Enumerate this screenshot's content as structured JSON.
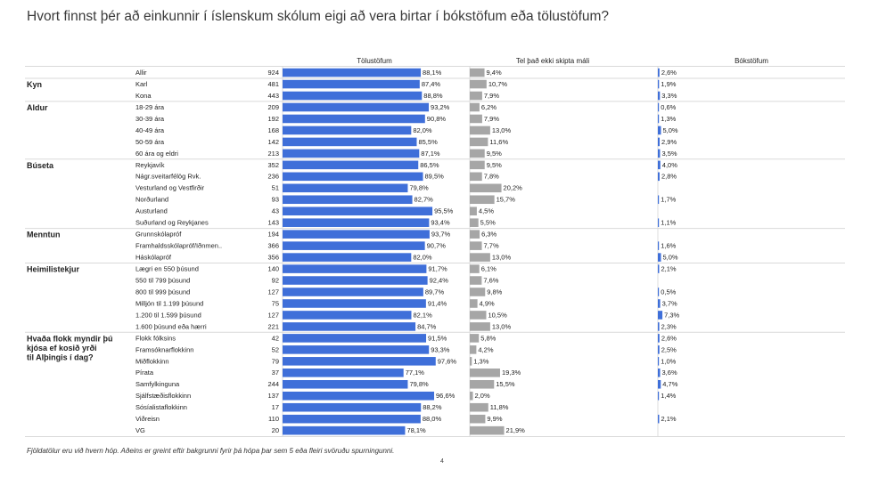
{
  "title": "Hvort finnst þér að einkunnir í íslenskum skólum eigi að vera birtar í bókstöfum eða tölustöfum?",
  "footnote": "Fjöldatölur eru við hvern hóp. Aðeins er greint eftir bakgrunni fyrir þá hópa þar sem 5 eða fleiri svöruðu spurningunni.",
  "page_number": "4",
  "colors": {
    "blue": "#3f6fd9",
    "gray": "#a6a6a6",
    "line": "#d9d9d9"
  },
  "chart_data": {
    "type": "bar",
    "columns": [
      "Tölustöfum",
      "Tel það ekki skipta máli",
      "Bókstöfum"
    ],
    "groups": [
      {
        "label": "",
        "rows": [
          {
            "label": "Allir",
            "n": "924",
            "values": [
              88.1,
              9.4,
              2.6
            ]
          }
        ]
      },
      {
        "label": "Kyn",
        "rows": [
          {
            "label": "Karl",
            "n": "481",
            "values": [
              87.4,
              10.7,
              1.9
            ]
          },
          {
            "label": "Kona",
            "n": "443",
            "values": [
              88.8,
              7.9,
              3.3
            ]
          }
        ]
      },
      {
        "label": "Aldur",
        "rows": [
          {
            "label": "18-29 ára",
            "n": "209",
            "values": [
              93.2,
              6.2,
              0.6
            ]
          },
          {
            "label": "30-39 ára",
            "n": "192",
            "values": [
              90.8,
              7.9,
              1.3
            ]
          },
          {
            "label": "40-49 ára",
            "n": "168",
            "values": [
              82.0,
              13.0,
              5.0
            ]
          },
          {
            "label": "50-59 ára",
            "n": "142",
            "values": [
              85.5,
              11.6,
              2.9
            ]
          },
          {
            "label": "60 ára og eldri",
            "n": "213",
            "values": [
              87.1,
              9.5,
              3.5
            ]
          }
        ]
      },
      {
        "label": "Búseta",
        "rows": [
          {
            "label": "Reykjavík",
            "n": "352",
            "values": [
              86.5,
              9.5,
              4.0
            ]
          },
          {
            "label": "Nágr.sveitarfélög Rvk.",
            "n": "236",
            "values": [
              89.5,
              7.8,
              2.8
            ]
          },
          {
            "label": "Vesturland og Vestfirðir",
            "n": "51",
            "values": [
              79.8,
              20.2,
              null
            ]
          },
          {
            "label": "Norðurland",
            "n": "93",
            "values": [
              82.7,
              15.7,
              1.7
            ]
          },
          {
            "label": "Austurland",
            "n": "43",
            "values": [
              95.5,
              4.5,
              null
            ]
          },
          {
            "label": "Suðurland og Reykjanes",
            "n": "143",
            "values": [
              93.4,
              5.5,
              1.1
            ]
          }
        ]
      },
      {
        "label": "Menntun",
        "rows": [
          {
            "label": "Grunnskólapróf",
            "n": "194",
            "values": [
              93.7,
              6.3,
              null
            ]
          },
          {
            "label": "Framhaldsskólapróf/Iðnmen..",
            "n": "366",
            "values": [
              90.7,
              7.7,
              1.6
            ]
          },
          {
            "label": "Háskólapróf",
            "n": "356",
            "values": [
              82.0,
              13.0,
              5.0
            ]
          }
        ]
      },
      {
        "label": "Heimilistekjur",
        "rows": [
          {
            "label": "Lægri en 550 þúsund",
            "n": "140",
            "values": [
              91.7,
              6.1,
              2.1
            ]
          },
          {
            "label": "550 til 799 þúsund",
            "n": "92",
            "values": [
              92.4,
              7.6,
              null
            ]
          },
          {
            "label": "800 til 999 þúsund",
            "n": "127",
            "values": [
              89.7,
              9.8,
              0.5
            ]
          },
          {
            "label": "Milljón til 1.199 þúsund",
            "n": "75",
            "values": [
              91.4,
              4.9,
              3.7
            ]
          },
          {
            "label": "1.200 til 1.599 þúsund",
            "n": "127",
            "values": [
              82.1,
              10.5,
              7.3
            ]
          },
          {
            "label": "1.600 þúsund eða hærri",
            "n": "221",
            "values": [
              84.7,
              13.0,
              2.3
            ]
          }
        ]
      },
      {
        "label": "Hvaða flokk myndir þú kjósa ef kosið yrði til Alþingis í dag?",
        "rows": [
          {
            "label": "Flokk fólksins",
            "n": "42",
            "values": [
              91.5,
              5.8,
              2.6
            ]
          },
          {
            "label": "Framsóknarflokkinn",
            "n": "52",
            "values": [
              93.3,
              4.2,
              2.5
            ]
          },
          {
            "label": "Miðflokkinn",
            "n": "79",
            "values": [
              97.6,
              1.3,
              1.0
            ]
          },
          {
            "label": "Pírata",
            "n": "37",
            "values": [
              77.1,
              19.3,
              3.6
            ]
          },
          {
            "label": "Samfylkinguna",
            "n": "244",
            "values": [
              79.8,
              15.5,
              4.7
            ]
          },
          {
            "label": "Sjálfstæðisflokkinn",
            "n": "137",
            "values": [
              96.6,
              2.0,
              1.4
            ]
          },
          {
            "label": "Sósíalistaflokkinn",
            "n": "17",
            "values": [
              88.2,
              11.8,
              null
            ]
          },
          {
            "label": "Viðreisn",
            "n": "110",
            "values": [
              88.0,
              9.9,
              2.1
            ]
          },
          {
            "label": "VG",
            "n": "20",
            "values": [
              78.1,
              21.9,
              null
            ]
          }
        ]
      }
    ]
  }
}
